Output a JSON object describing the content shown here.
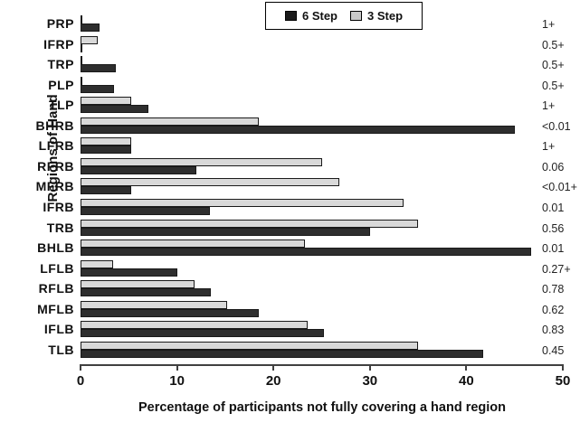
{
  "chart_data": {
    "type": "bar",
    "orientation": "horizontal",
    "xlabel": "Percentage of  participants not fully covering a hand region",
    "ylabel": "Regions of Hand",
    "xlim": [
      0,
      50
    ],
    "x_ticks": [
      0,
      10,
      20,
      30,
      40,
      50
    ],
    "grid": false,
    "legend_position": "top-center",
    "categories": [
      "PRP",
      "IFRP",
      "TRP",
      "PLP",
      "TLP",
      "BHRB",
      "LFRB",
      "RFRB",
      "MFRB",
      "IFRB",
      "TRB",
      "BHLB",
      "LFLB",
      "RFLB",
      "MFLB",
      "IFLB",
      "TLB"
    ],
    "series": [
      {
        "name": "6 Step",
        "color": "#2e2e2e",
        "values": [
          2,
          0.2,
          3.7,
          3.5,
          7,
          45,
          5.3,
          12,
          5.3,
          13.4,
          30,
          46.7,
          10,
          13.5,
          18.5,
          25.2,
          41.7
        ]
      },
      {
        "name": "3 Step",
        "color": "#d9d9d9",
        "values": [
          0.2,
          1.8,
          0.2,
          0.2,
          5.3,
          18.5,
          5.3,
          25,
          26.8,
          33.5,
          35,
          23.3,
          3.4,
          11.8,
          15.2,
          23.5,
          35
        ]
      }
    ],
    "p_values": [
      "1+",
      "0.5+",
      "0.5+",
      "0.5+",
      "1+",
      "<0.01",
      "1+",
      "0.06",
      "<0.01+",
      "0.01",
      "0.56",
      "0.01",
      "0.27+",
      "0.78",
      "0.62",
      "0.83",
      "0.45"
    ]
  },
  "legend": {
    "six_label": "6 Step",
    "three_label": "3 Step"
  },
  "axes": {
    "x_title": "Percentage of  participants not fully covering a hand region",
    "y_title": "Regions of Hand"
  }
}
